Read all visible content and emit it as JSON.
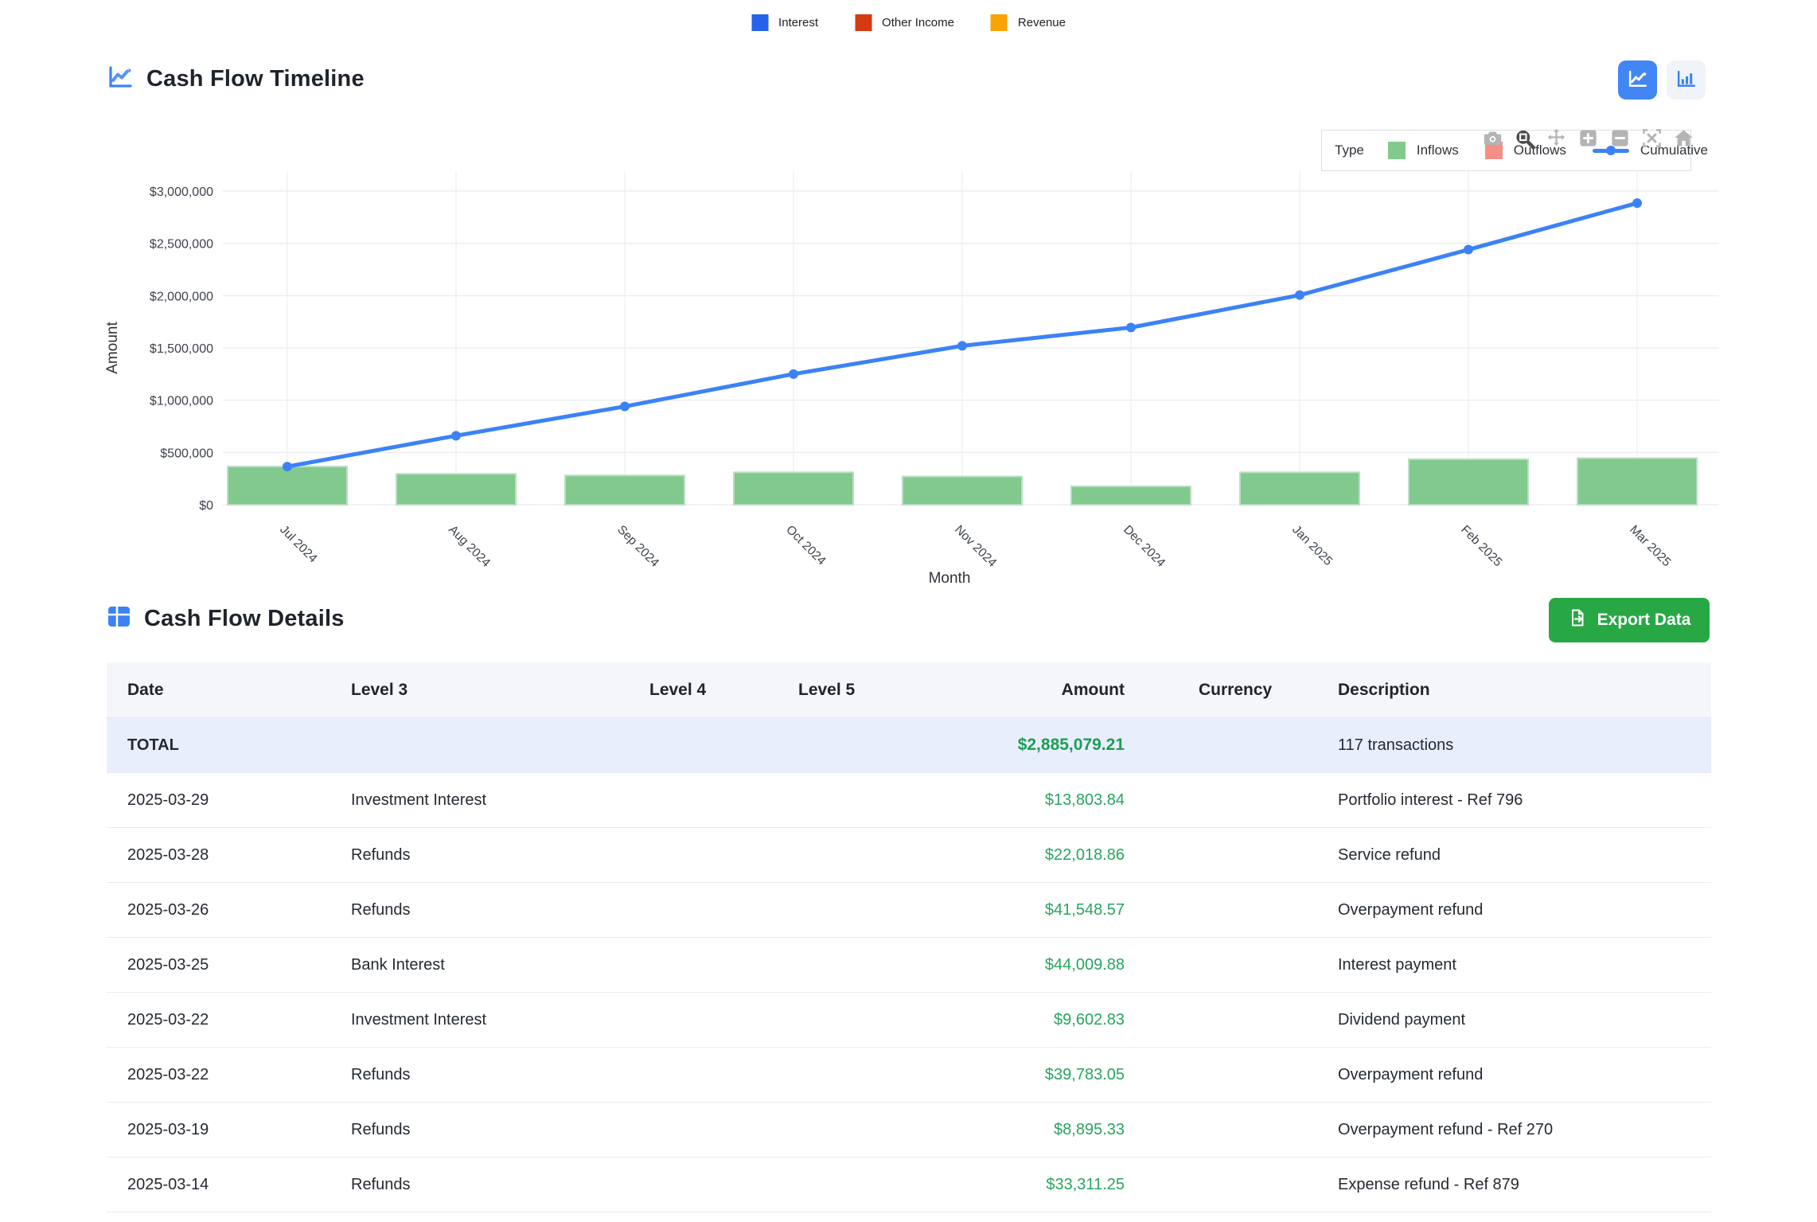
{
  "top_legend": {
    "items": [
      {
        "label": "Interest",
        "color": "#2563eb"
      },
      {
        "label": "Other Income",
        "color": "#d63a12"
      },
      {
        "label": "Revenue",
        "color": "#f9a406"
      }
    ]
  },
  "timeline_section": {
    "title": "Cash Flow Timeline",
    "view_toggle_icons": [
      "line-chart-icon",
      "bar-chart-icon"
    ]
  },
  "chart_data": {
    "type": "bar",
    "x": [
      "Jul 2024",
      "Aug 2024",
      "Sep 2024",
      "Oct 2024",
      "Nov 2024",
      "Dec 2024",
      "Jan 2025",
      "Feb 2025",
      "Mar 2025"
    ],
    "series": [
      {
        "name": "Inflows",
        "type": "bar",
        "color": "#82c98e",
        "values": [
          365000,
          295000,
          280000,
          310000,
          270000,
          175000,
          310000,
          435000,
          445079
        ]
      },
      {
        "name": "Outflows",
        "type": "bar",
        "color": "#f29087",
        "values": [
          0,
          0,
          0,
          0,
          0,
          0,
          0,
          0,
          0
        ]
      },
      {
        "name": "Cumulative",
        "type": "line",
        "color": "#3b82f6",
        "values": [
          365000,
          660000,
          940000,
          1250000,
          1520000,
          1695000,
          2005000,
          2440000,
          2885079
        ]
      }
    ],
    "title": "",
    "xlabel": "Month",
    "ylabel": "Amount",
    "ylim": [
      0,
      3000000
    ],
    "ytick_step": 500000,
    "yticks": [
      "$0",
      "$500,000",
      "$1,000,000",
      "$1,500,000",
      "$2,000,000",
      "$2,500,000",
      "$3,000,000"
    ],
    "grid": true,
    "legend": {
      "title": "Type",
      "position": "top-right"
    }
  },
  "chart_toolbar": {
    "icons": [
      "camera-icon",
      "zoom-icon",
      "pan-icon",
      "zoom-in-icon",
      "zoom-out-icon",
      "autoscale-icon",
      "home-icon"
    ]
  },
  "details_section": {
    "title": "Cash Flow Details",
    "export_label": "Export Data"
  },
  "table": {
    "columns": [
      "Date",
      "Level 3",
      "Level 4",
      "Level 5",
      "Amount",
      "Currency",
      "Description"
    ],
    "total_row": {
      "label": "TOTAL",
      "amount": "$2,885,079.21",
      "description": "117 transactions"
    },
    "rows": [
      {
        "date": "2025-03-29",
        "level3": "Investment Interest",
        "level4": "",
        "level5": "",
        "amount": "$13,803.84",
        "currency": "",
        "description": "Portfolio interest - Ref 796"
      },
      {
        "date": "2025-03-28",
        "level3": "Refunds",
        "level4": "",
        "level5": "",
        "amount": "$22,018.86",
        "currency": "",
        "description": "Service refund"
      },
      {
        "date": "2025-03-26",
        "level3": "Refunds",
        "level4": "",
        "level5": "",
        "amount": "$41,548.57",
        "currency": "",
        "description": "Overpayment refund"
      },
      {
        "date": "2025-03-25",
        "level3": "Bank Interest",
        "level4": "",
        "level5": "",
        "amount": "$44,009.88",
        "currency": "",
        "description": "Interest payment"
      },
      {
        "date": "2025-03-22",
        "level3": "Investment Interest",
        "level4": "",
        "level5": "",
        "amount": "$9,602.83",
        "currency": "",
        "description": "Dividend payment"
      },
      {
        "date": "2025-03-22",
        "level3": "Refunds",
        "level4": "",
        "level5": "",
        "amount": "$39,783.05",
        "currency": "",
        "description": "Overpayment refund"
      },
      {
        "date": "2025-03-19",
        "level3": "Refunds",
        "level4": "",
        "level5": "",
        "amount": "$8,895.33",
        "currency": "",
        "description": "Overpayment refund - Ref 270"
      },
      {
        "date": "2025-03-14",
        "level3": "Refunds",
        "level4": "",
        "level5": "",
        "amount": "$33,311.25",
        "currency": "",
        "description": "Expense refund - Ref 879"
      }
    ]
  },
  "colors": {
    "accent_blue": "#3b82f6",
    "toggle_active": "#4285f4",
    "bar_green": "#82c98e",
    "outflow_red": "#f29087",
    "export_green": "#28a745",
    "amount_green": "#27a55f",
    "total_row_bg": "#e8eefc",
    "header_row_bg": "#f4f6f9"
  }
}
